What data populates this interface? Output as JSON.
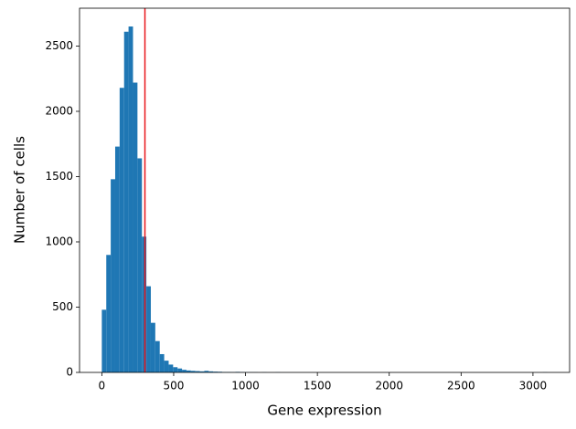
{
  "chart_data": {
    "type": "histogram",
    "xlabel": "Gene expression",
    "ylabel": "Number of cells",
    "bins": [
      0,
      31,
      62,
      93,
      124,
      155,
      186,
      217,
      248,
      279,
      310,
      341,
      372,
      403,
      434,
      465,
      496,
      527,
      558,
      589,
      620,
      651,
      682,
      713,
      744,
      775,
      806,
      837,
      868,
      899,
      930,
      961,
      992,
      1023,
      1054,
      1085,
      1116,
      1147,
      1178,
      1209,
      1240,
      1271,
      1302,
      1333,
      1364,
      1395,
      1426,
      1457,
      1488,
      1519,
      1550,
      1581,
      1612,
      1643,
      1674,
      1705,
      1736,
      1767,
      1798,
      1829,
      1860,
      1891,
      1922,
      1953,
      1984,
      2015,
      2046,
      2077,
      2108,
      2139,
      2170,
      2201,
      2232,
      2263,
      2294,
      2325,
      2356,
      2387,
      2418,
      2449,
      2480,
      2511,
      2542,
      2573,
      2604,
      2635,
      2666,
      2697,
      2728,
      2759,
      2790,
      2821,
      2852,
      2883,
      2914,
      2945,
      2976,
      3007,
      3038,
      3069,
      3100
    ],
    "values": [
      480,
      900,
      1480,
      1730,
      2180,
      2610,
      2650,
      2220,
      1640,
      1040,
      660,
      380,
      240,
      140,
      90,
      60,
      40,
      30,
      20,
      15,
      12,
      10,
      8,
      12,
      8,
      6,
      5,
      3,
      3,
      2,
      4,
      2,
      1,
      1,
      1,
      0,
      1,
      0,
      0,
      1,
      0,
      0,
      0,
      0,
      0,
      0,
      0,
      0,
      0,
      0,
      0,
      0,
      0,
      0,
      0,
      0,
      0,
      0,
      0,
      0,
      0,
      0,
      0,
      0,
      0,
      0,
      0,
      0,
      0,
      0,
      0,
      0,
      0,
      0,
      0,
      0,
      0,
      0,
      0,
      0,
      0,
      0,
      0,
      0,
      0,
      0,
      0,
      0,
      0,
      0,
      0,
      0,
      0,
      0,
      0,
      0,
      0,
      0,
      0,
      1
    ],
    "color": "#1f77b4",
    "vline": 300,
    "vline_color": "#e8161b",
    "xlim": [
      -155,
      3255
    ],
    "xticks": [
      0,
      500,
      1000,
      1500,
      2000,
      2500,
      3000
    ],
    "ylim": [
      0,
      2790
    ],
    "yticks": [
      0,
      500,
      1000,
      1500,
      2000,
      2500
    ],
    "grid": false
  }
}
